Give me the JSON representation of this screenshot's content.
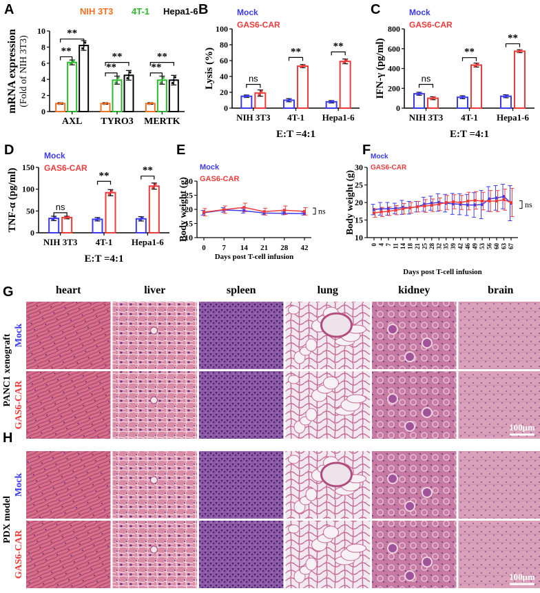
{
  "panel_letters": {
    "A": "A",
    "B": "B",
    "C": "C",
    "D": "D",
    "E": "E",
    "F": "F",
    "G": "G",
    "H": "H"
  },
  "colors": {
    "nih": "#f07020",
    "t41": "#2cb82c",
    "hepa": "#000000",
    "mock": "#3a3af0",
    "car": "#f03a3a"
  },
  "sig": {
    "ns": "ns",
    "star": "**"
  },
  "chart_data": [
    {
      "id": "A",
      "type": "bar",
      "ylabel_line1": "mRNA expression",
      "ylabel_line2": "(Fold of NIH 3T3)",
      "ylim": [
        0,
        10
      ],
      "yticks": [
        "0",
        "2",
        "4",
        "6",
        "8",
        "10"
      ],
      "categories": [
        "AXL",
        "TYRO3",
        "MERTK"
      ],
      "legend": [
        "NIH 3T3",
        "4T-1",
        "Hepa1-6"
      ],
      "series": [
        {
          "name": "NIH 3T3",
          "values": [
            1.0,
            1.0,
            1.0
          ],
          "err": [
            0.1,
            0.1,
            0.1
          ]
        },
        {
          "name": "4T-1",
          "values": [
            6.1,
            3.9,
            3.9
          ],
          "err": [
            0.3,
            0.5,
            0.5
          ]
        },
        {
          "name": "Hepa1-6",
          "values": [
            8.2,
            4.5,
            3.9
          ],
          "err": [
            0.6,
            0.6,
            0.6
          ]
        }
      ]
    },
    {
      "id": "B",
      "type": "bar",
      "ylabel": "Lysis (%)",
      "ylim": [
        0,
        100
      ],
      "yticks": [
        "0",
        "20",
        "40",
        "60",
        "80",
        "100"
      ],
      "categories": [
        "NIH 3T3",
        "4T-1",
        "Hepa1-6"
      ],
      "legend": [
        "Mock",
        "GAS6-CAR"
      ],
      "xlabel": "E:T =4:1",
      "series": [
        {
          "name": "Mock",
          "values": [
            15,
            10,
            8
          ],
          "err": [
            1.5,
            2,
            1.5
          ]
        },
        {
          "name": "GAS6-CAR",
          "values": [
            19,
            53,
            59
          ],
          "err": [
            4,
            2,
            3
          ]
        }
      ]
    },
    {
      "id": "C",
      "type": "bar",
      "ylabel": "IFN-γ (pg/ml)",
      "ylim": [
        0,
        800
      ],
      "yticks": [
        "0",
        "200",
        "400",
        "600",
        "800"
      ],
      "categories": [
        "NIH 3T3",
        "4T-1",
        "Hepa1-6"
      ],
      "legend": [
        "Mock",
        "GAS6-CAR"
      ],
      "xlabel": "E:T =4:1",
      "series": [
        {
          "name": "Mock",
          "values": [
            145,
            110,
            120
          ],
          "err": [
            15,
            15,
            15
          ]
        },
        {
          "name": "GAS6-CAR",
          "values": [
            100,
            435,
            575
          ],
          "err": [
            15,
            20,
            15
          ]
        }
      ]
    },
    {
      "id": "D",
      "type": "bar",
      "ylabel": "TNF-α (pg/ml)",
      "ylim": [
        0,
        150
      ],
      "yticks": [
        "0",
        "50",
        "100",
        "150"
      ],
      "categories": [
        "NIH 3T3",
        "4T-1",
        "Hepa1-6"
      ],
      "legend": [
        "Mock",
        "GAS6-CAR"
      ],
      "xlabel": "E:T =4:1",
      "series": [
        {
          "name": "Mock",
          "values": [
            33,
            31,
            32
          ],
          "err": [
            5,
            4,
            5
          ]
        },
        {
          "name": "GAS6-CAR",
          "values": [
            35,
            92,
            107
          ],
          "err": [
            3,
            7,
            7
          ]
        }
      ]
    },
    {
      "id": "E",
      "type": "line",
      "ylabel": "Body weight (g)",
      "xlabel": "Days post T-cell infusion",
      "ylim": [
        10,
        30
      ],
      "yticks": [
        "10",
        "15",
        "20",
        "25",
        "30"
      ],
      "x": [
        0,
        7,
        14,
        21,
        28,
        42
      ],
      "xticks": [
        "0",
        "7",
        "14",
        "21",
        "28",
        "42"
      ],
      "legend": [
        "Mock",
        "GAS6-CAR"
      ],
      "annotation": "ns",
      "series": [
        {
          "name": "Mock",
          "values": [
            18.8,
            19.8,
            19.5,
            18.7,
            18.6,
            18.5
          ],
          "err": [
            0.8,
            0.8,
            0.8,
            0.6,
            0.5,
            0.5
          ]
        },
        {
          "name": "GAS6-CAR",
          "values": [
            19.0,
            19.9,
            20.7,
            19.2,
            19.7,
            19.3
          ],
          "err": [
            1.3,
            1.3,
            1.5,
            1.2,
            1.5,
            1.3
          ]
        }
      ]
    },
    {
      "id": "F",
      "type": "line",
      "ylabel": "Body weight (g)",
      "xlabel": "Days post T-cell infusion",
      "ylim": [
        10,
        30
      ],
      "yticks": [
        "10",
        "15",
        "20",
        "25",
        "30"
      ],
      "x": [
        0,
        4,
        7,
        11,
        14,
        18,
        21,
        25,
        28,
        32,
        35,
        39,
        42,
        46,
        49,
        53,
        56,
        60,
        63,
        67
      ],
      "xticks": [
        "0",
        "4",
        "7",
        "11",
        "14",
        "18",
        "21",
        "25",
        "28",
        "32",
        "35",
        "39",
        "42",
        "46",
        "49",
        "53",
        "56",
        "60",
        "63",
        "67"
      ],
      "legend": [
        "Mock",
        "GAS6-CAR"
      ],
      "annotation": "ns",
      "series": [
        {
          "name": "Mock",
          "values": [
            18.0,
            18.2,
            18.2,
            18.3,
            18.6,
            18.5,
            18.8,
            19.5,
            19.8,
            20.0,
            19.8,
            19.6,
            19.5,
            19.3,
            19.3,
            19.4,
            21.0,
            21.3,
            21.7,
            19.8
          ],
          "err": [
            1.5,
            1.8,
            1.8,
            1.5,
            2.0,
            1.8,
            1.5,
            2.0,
            2.0,
            2.5,
            2.5,
            3.0,
            3.0,
            3.0,
            3.5,
            4.0,
            3.5,
            3.5,
            3.5,
            5.0
          ]
        },
        {
          "name": "GAS6-CAR",
          "values": [
            17.0,
            17.3,
            17.5,
            17.8,
            18.2,
            18.5,
            18.8,
            19.0,
            19.2,
            19.5,
            20.0,
            20.2,
            20.0,
            20.4,
            20.6,
            20.4,
            20.4,
            20.4,
            20.8,
            20.0
          ],
          "err": [
            1.2,
            1.3,
            1.2,
            1.3,
            1.5,
            1.5,
            1.5,
            1.8,
            1.8,
            1.8,
            2.0,
            2.0,
            2.0,
            2.5,
            2.5,
            2.5,
            3.0,
            3.0,
            3.0,
            4.0
          ]
        }
      ]
    }
  ],
  "histology": {
    "organs": [
      "heart",
      "liver",
      "spleen",
      "lung",
      "kidney",
      "brain"
    ],
    "G_side": "PANC1 xenograft",
    "H_side": "PDX model",
    "row_mock": "Mock",
    "row_car": "GAS6-CAR",
    "scale": "100μm"
  }
}
